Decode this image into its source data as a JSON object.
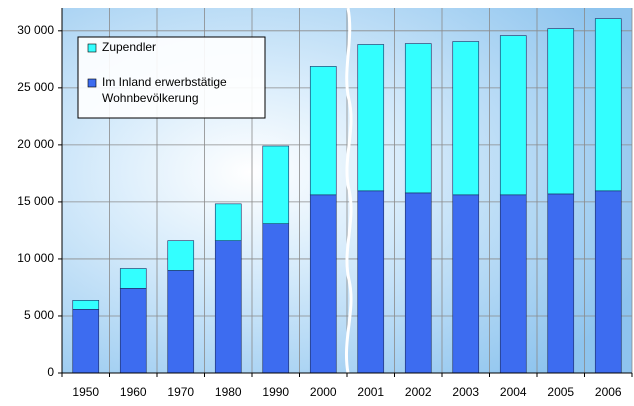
{
  "chart_data": {
    "type": "stacked_bar",
    "categories": [
      "1950",
      "1960",
      "1970",
      "1980",
      "1990",
      "2000",
      "2001",
      "2002",
      "2003",
      "2004",
      "2005",
      "2006"
    ],
    "series": [
      {
        "name": "Im Inland erwerbstätige Wohnbevölkerung",
        "color": "#3d6cf0",
        "values": [
          5580,
          7420,
          8990,
          11600,
          13090,
          15620,
          15970,
          15790,
          15620,
          15620,
          15700,
          15970
        ]
      },
      {
        "name": "Zupendler",
        "color": "#33ffff",
        "values": [
          790,
          1740,
          2610,
          3230,
          6810,
          11260,
          12830,
          13090,
          13440,
          13960,
          14490,
          15100
        ]
      }
    ],
    "ylim": [
      0,
      32000
    ],
    "yticks": [
      0,
      {
        "value": 5000,
        "label": "5 000"
      },
      {
        "value": 10000,
        "label": "10 000"
      },
      {
        "value": 15000,
        "label": "15 000"
      },
      {
        "value": 20000,
        "label": "20 000"
      },
      {
        "value": 25000,
        "label": "25 000"
      },
      {
        "value": 30000,
        "label": "30 000"
      }
    ],
    "grid": true
  }
}
